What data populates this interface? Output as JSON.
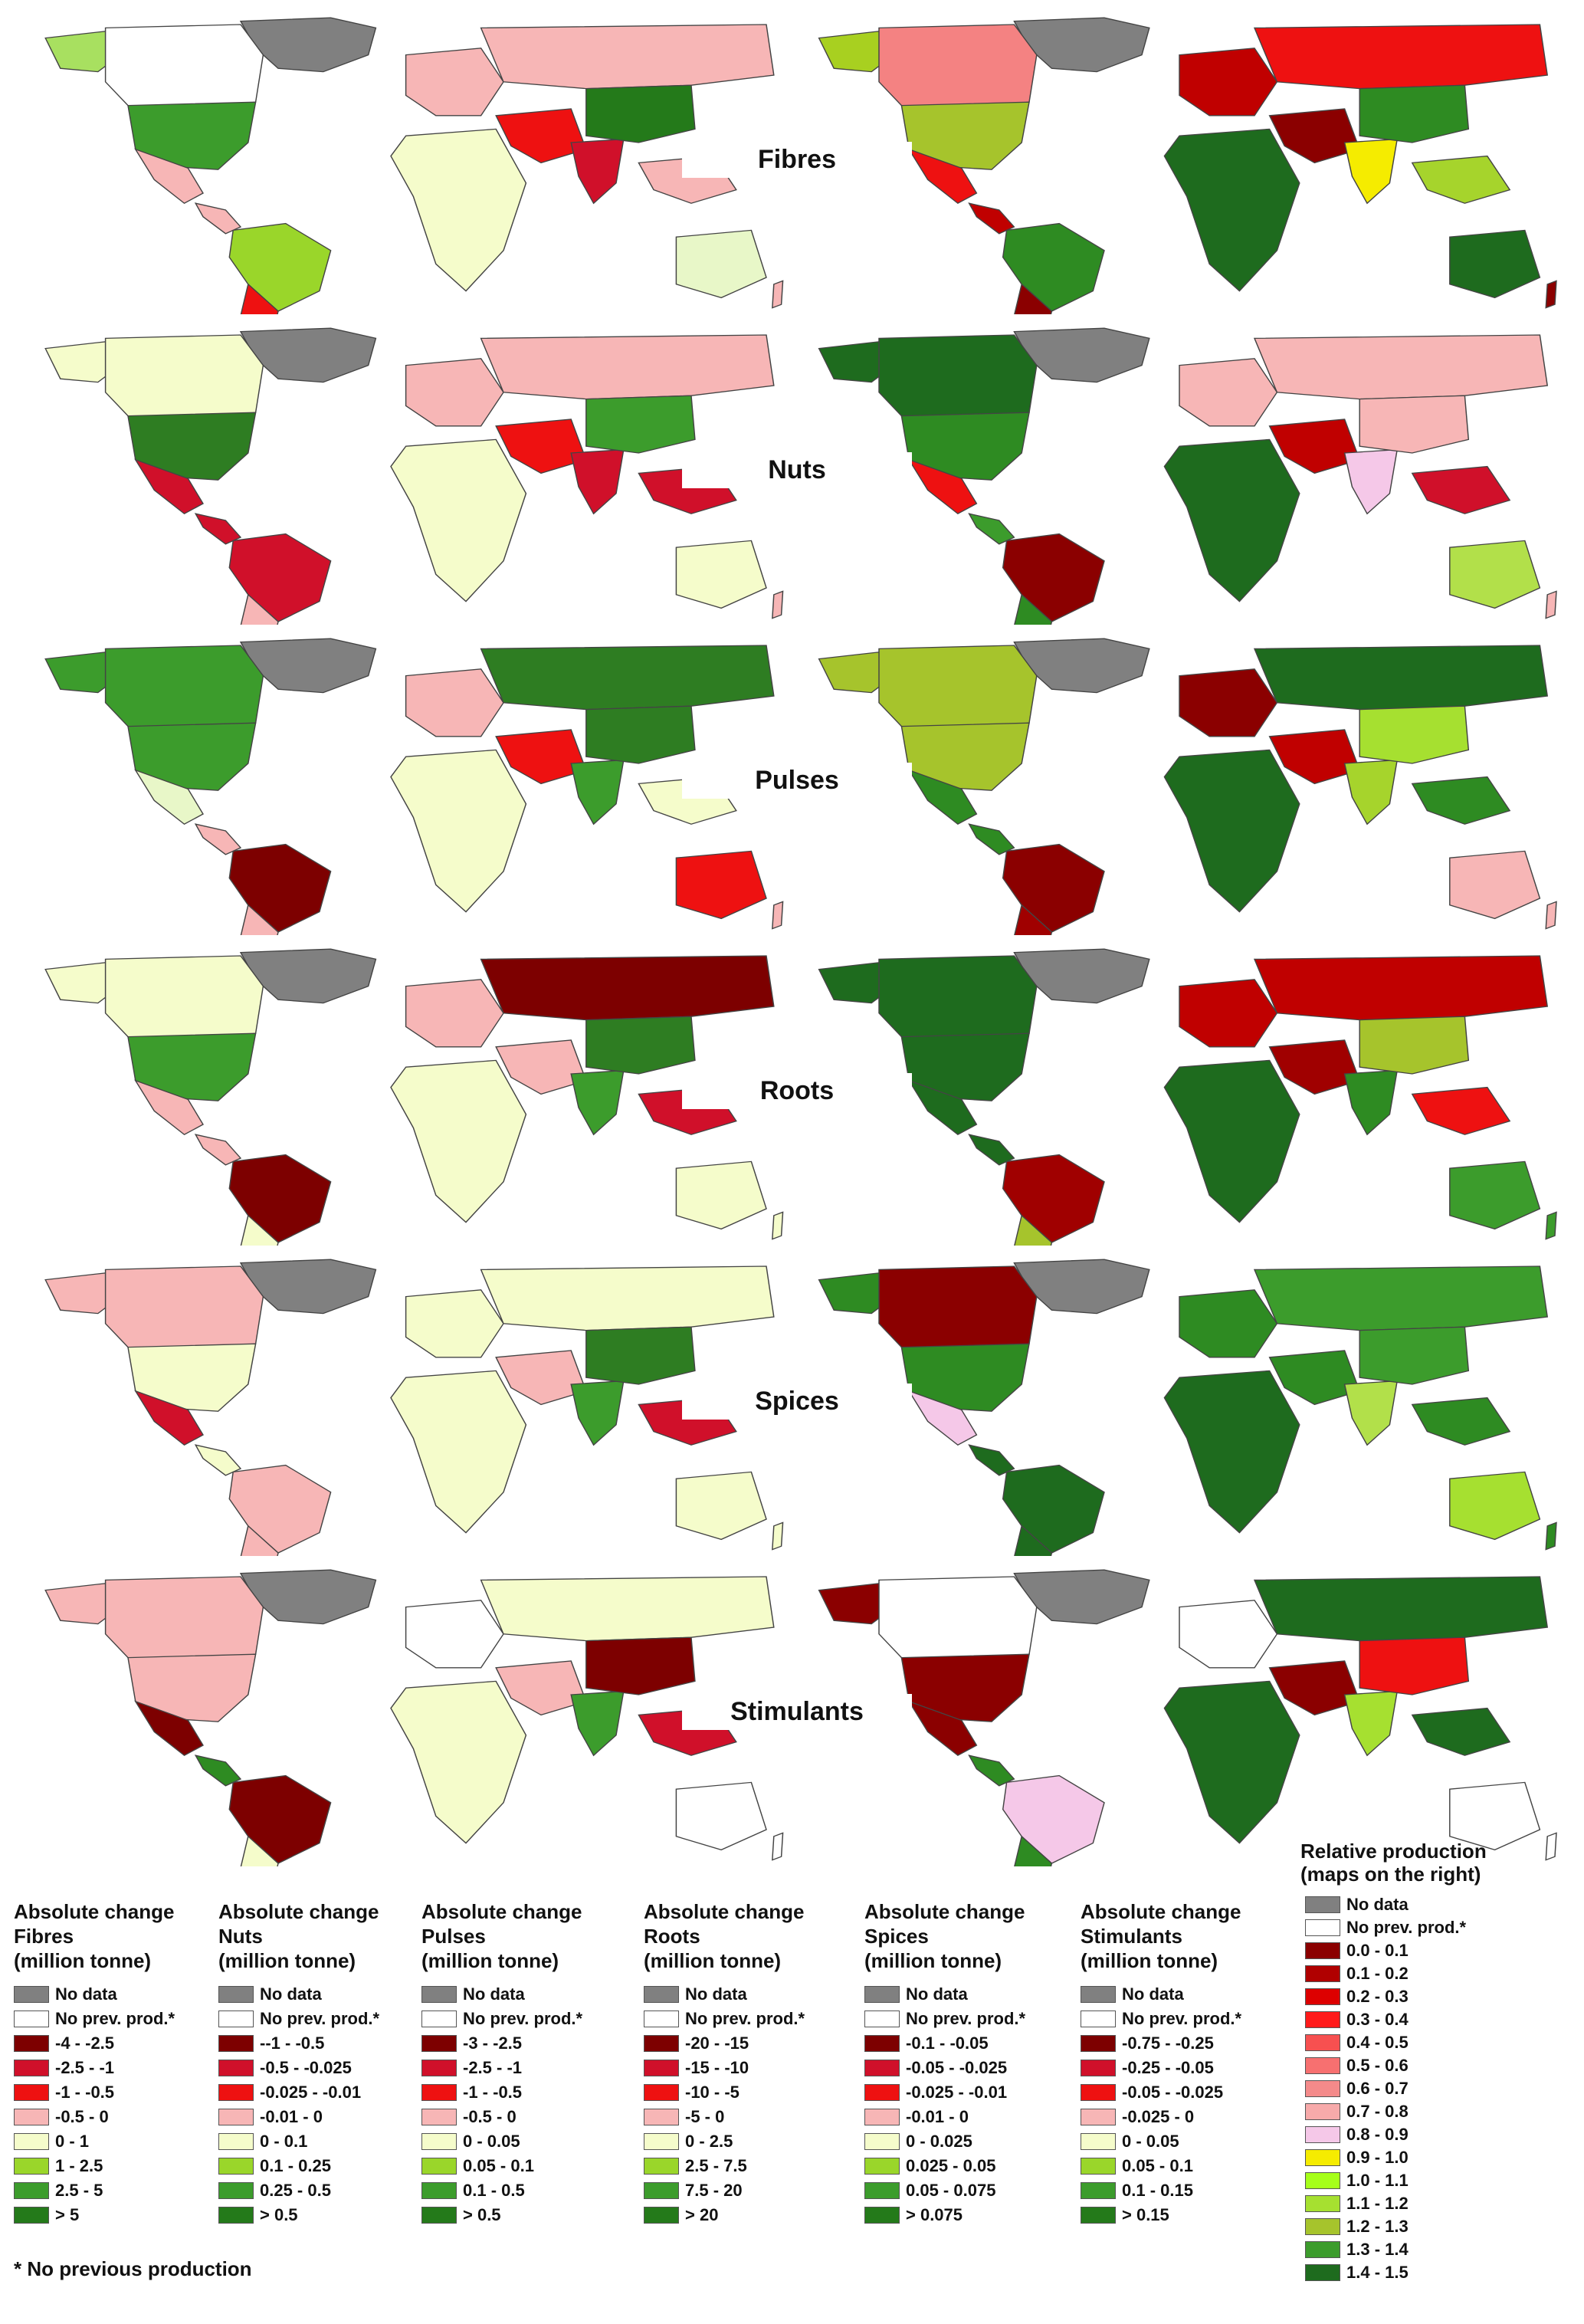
{
  "rows": [
    {
      "label": "Fibres",
      "abs": {
        "na": "#a8e060",
        "greenland": "#808080",
        "ca": "#ffffff",
        "us": "#3c9c2c",
        "mx": "#f7b6b6",
        "ca_am": "#f7b6b6",
        "sa_n": "#9ad62a",
        "sa_s": "#ee1111",
        "eu": "#f7b6b6",
        "ru": "#f7b6b6",
        "af": "#f5fccb",
        "me": "#ee1111",
        "in": "#d0102a",
        "cn": "#247a1a",
        "sea": "#f7b6b6",
        "au": "#e8f7c8",
        "nz": "#f7b6b6"
      },
      "rel": {
        "na": "#a8d020",
        "greenland": "#808080",
        "ca": "#f48282",
        "us": "#a6c42c",
        "mx": "#ee1111",
        "ca_am": "#c00000",
        "sa_n": "#2e8b22",
        "sa_s": "#8b0000",
        "eu": "#c00000",
        "ru": "#ee1111",
        "af": "#1e6b1e",
        "me": "#8b0000",
        "in": "#f5ec00",
        "cn": "#2e8b22",
        "sea": "#a6d42c",
        "au": "#1e6b1e",
        "nz": "#8b0000"
      }
    },
    {
      "label": "Nuts",
      "abs": {
        "na": "#f5fccb",
        "greenland": "#808080",
        "ca": "#f5fccb",
        "us": "#2e7d22",
        "mx": "#d0102a",
        "ca_am": "#d0102a",
        "sa_n": "#d0102a",
        "sa_s": "#f7b6b6",
        "eu": "#f7b6b6",
        "ru": "#f7b6b6",
        "af": "#f5fccb",
        "me": "#ee1111",
        "in": "#d0102a",
        "cn": "#3c9c2c",
        "sea": "#d0102a",
        "au": "#f5fccb",
        "nz": "#f7b6b6"
      },
      "rel": {
        "na": "#1e6b1e",
        "greenland": "#808080",
        "ca": "#1e6b1e",
        "us": "#2e8b22",
        "mx": "#ee1111",
        "ca_am": "#3c9c2c",
        "sa_n": "#8b0000",
        "sa_s": "#2e8b22",
        "eu": "#f7b6b6",
        "ru": "#f7b6b6",
        "af": "#1e6b1e",
        "me": "#c00000",
        "in": "#f5c8e8",
        "cn": "#f7b6b6",
        "sea": "#d0102a",
        "au": "#b2e04a",
        "nz": "#f7b6b6"
      }
    },
    {
      "label": "Pulses",
      "abs": {
        "na": "#3c9c2c",
        "greenland": "#808080",
        "ca": "#3c9c2c",
        "us": "#3c9c2c",
        "mx": "#e8f7c8",
        "ca_am": "#f7b6b6",
        "sa_n": "#7d0000",
        "sa_s": "#f7b6b6",
        "eu": "#f7b6b6",
        "ru": "#2e7d22",
        "af": "#f5fccb",
        "me": "#ee1111",
        "in": "#3c9c2c",
        "cn": "#2e7d22",
        "sea": "#f5fccb",
        "au": "#ee1111",
        "nz": "#f7b6b6"
      },
      "rel": {
        "na": "#a6c42c",
        "greenland": "#808080",
        "ca": "#a6c42c",
        "us": "#a6c42c",
        "mx": "#2e8b22",
        "ca_am": "#2e8b22",
        "sa_n": "#8b0000",
        "sa_s": "#a00000",
        "eu": "#8b0000",
        "ru": "#1e6b1e",
        "af": "#1e6b1e",
        "me": "#c00000",
        "in": "#a6d42c",
        "cn": "#a6e030",
        "sea": "#2e8b22",
        "au": "#f7b6b6",
        "nz": "#f7b6b6"
      }
    },
    {
      "label": "Roots",
      "abs": {
        "na": "#f5fccb",
        "greenland": "#808080",
        "ca": "#f5fccb",
        "us": "#3c9c2c",
        "mx": "#f7b6b6",
        "ca_am": "#f7b6b6",
        "sa_n": "#7d0000",
        "sa_s": "#f5fccb",
        "eu": "#f7b6b6",
        "ru": "#7d0000",
        "af": "#f5fccb",
        "me": "#f7b6b6",
        "in": "#3c9c2c",
        "cn": "#2e7d22",
        "sea": "#d0102a",
        "au": "#f5fccb",
        "nz": "#f5fccb"
      },
      "rel": {
        "na": "#1e6b1e",
        "greenland": "#808080",
        "ca": "#1e6b1e",
        "us": "#1e6b1e",
        "mx": "#1e6b1e",
        "ca_am": "#1e6b1e",
        "sa_n": "#a00000",
        "sa_s": "#a6c42c",
        "eu": "#c00000",
        "ru": "#c00000",
        "af": "#1e6b1e",
        "me": "#a00000",
        "in": "#2e8b22",
        "cn": "#a6c42c",
        "sea": "#ee1111",
        "au": "#3c9c2c",
        "nz": "#3c9c2c"
      }
    },
    {
      "label": "Spices",
      "abs": {
        "na": "#f7b6b6",
        "greenland": "#808080",
        "ca": "#f7b6b6",
        "us": "#f5fccb",
        "mx": "#d0102a",
        "ca_am": "#f5fccb",
        "sa_n": "#f7b6b6",
        "sa_s": "#f7b6b6",
        "eu": "#f5fccb",
        "ru": "#f5fccb",
        "af": "#f5fccb",
        "me": "#f7b6b6",
        "in": "#3c9c2c",
        "cn": "#2e7d22",
        "sea": "#d0102a",
        "au": "#f5fccb",
        "nz": "#f5fccb"
      },
      "rel": {
        "na": "#2e8b22",
        "greenland": "#808080",
        "ca": "#8b0000",
        "us": "#2e8b22",
        "mx": "#f5c8e8",
        "ca_am": "#1e6b1e",
        "sa_n": "#1e6b1e",
        "sa_s": "#1e6b1e",
        "eu": "#2e8b22",
        "ru": "#3c9c2c",
        "af": "#1e6b1e",
        "me": "#2e8b22",
        "in": "#b2e04a",
        "cn": "#3c9c2c",
        "sea": "#2e8b22",
        "au": "#a6e030",
        "nz": "#2e8b22"
      }
    },
    {
      "label": "Stimulants",
      "abs": {
        "na": "#f7b6b6",
        "greenland": "#808080",
        "ca": "#f7b6b6",
        "us": "#f7b6b6",
        "mx": "#7d0000",
        "ca_am": "#2e8b22",
        "sa_n": "#7d0000",
        "sa_s": "#f5fccb",
        "eu": "#ffffff",
        "ru": "#f5fccb",
        "af": "#f5fccb",
        "me": "#f7b6b6",
        "in": "#3c9c2c",
        "cn": "#7d0000",
        "sea": "#d0102a",
        "au": "#ffffff",
        "nz": "#ffffff"
      },
      "rel": {
        "na": "#8b0000",
        "greenland": "#808080",
        "ca": "#ffffff",
        "us": "#8b0000",
        "mx": "#8b0000",
        "ca_am": "#2e8b22",
        "sa_n": "#f5c8e8",
        "sa_s": "#2e8b22",
        "eu": "#ffffff",
        "ru": "#1e6b1e",
        "af": "#1e6b1e",
        "me": "#8b0000",
        "in": "#a6e030",
        "cn": "#ee1111",
        "sea": "#1e6b1e",
        "au": "#ffffff",
        "nz": "#ffffff"
      }
    }
  ],
  "legend_swatch_colors": [
    "#808080",
    "#ffffff",
    "#7d0000",
    "#d0102a",
    "#ee1111",
    "#f7b6b6",
    "#f5fccb",
    "#9ad62a",
    "#3c9c2c",
    "#247a1a"
  ],
  "legends": [
    {
      "title1": "Absolute change",
      "title2": "Fibres",
      "title3": "(million tonne)",
      "items": [
        "No data",
        "No prev. prod.*",
        "-4 - -2.5",
        "-2.5 - -1",
        "-1 - -0.5",
        "-0.5 - 0",
        "0 - 1",
        "1 - 2.5",
        "2.5 - 5",
        "> 5"
      ]
    },
    {
      "title1": "Absolute change",
      "title2": "Nuts",
      "title3": "(million tonne)",
      "items": [
        "No data",
        "No prev. prod.*",
        "--1 - -0.5",
        "-0.5 - -0.025",
        "-0.025 - -0.01",
        "-0.01 - 0",
        "0 - 0.1",
        "0.1 - 0.25",
        "0.25 - 0.5",
        "> 0.5"
      ]
    },
    {
      "title1": "Absolute change",
      "title2": "Pulses",
      "title3": "(million tonne)",
      "items": [
        "No data",
        "No prev. prod.*",
        "-3 - -2.5",
        "-2.5 - -1",
        "-1 - -0.5",
        "-0.5 - 0",
        "0 - 0.05",
        "0.05 - 0.1",
        "0.1 - 0.5",
        "> 0.5"
      ]
    },
    {
      "title1": "Absolute change",
      "title2": "Roots",
      "title3": "(million tonne)",
      "items": [
        "No data",
        "No prev. prod.*",
        "-20 - -15",
        "-15 - -10",
        "-10 - -5",
        "-5 - 0",
        "0 - 2.5",
        "2.5 - 7.5",
        "7.5 - 20",
        "> 20"
      ]
    },
    {
      "title1": "Absolute change",
      "title2": "Spices",
      "title3": "(million tonne)",
      "items": [
        "No data",
        "No prev. prod.*",
        "-0.1 - -0.05",
        "-0.05 - -0.025",
        "-0.025 - -0.01",
        "-0.01 - 0",
        "0 - 0.025",
        "0.025 - 0.05",
        "0.05 - 0.075",
        "> 0.075"
      ]
    },
    {
      "title1": "Absolute change",
      "title2": "Stimulants",
      "title3": "(million tonne)",
      "items": [
        "No data",
        "No prev. prod.*",
        "-0.75 - -0.25",
        "-0.25 - -0.05",
        "-0.05 - -0.025",
        "-0.025 - 0",
        "0 - 0.05",
        "0.05 - 0.1",
        "0.1 - 0.15",
        "> 0.15"
      ]
    }
  ],
  "relative_legend": {
    "title1": "Relative production",
    "title2": "(maps on the right)",
    "items": [
      {
        "label": "No data",
        "color": "#808080"
      },
      {
        "label": "No prev. prod.*",
        "color": "#ffffff"
      },
      {
        "label": "0.0 - 0.1",
        "color": "#8b0000"
      },
      {
        "label": "0.1 - 0.2",
        "color": "#b00000"
      },
      {
        "label": "0.2 - 0.3",
        "color": "#dd0000"
      },
      {
        "label": "0.3 - 0.4",
        "color": "#ff1a1a"
      },
      {
        "label": "0.4 - 0.5",
        "color": "#f75050"
      },
      {
        "label": "0.5 - 0.6",
        "color": "#f77070"
      },
      {
        "label": "0.6 - 0.7",
        "color": "#f48a8a"
      },
      {
        "label": "0.7 - 0.8",
        "color": "#f7aaaa"
      },
      {
        "label": "0.8 - 0.9",
        "color": "#f5c8e8"
      },
      {
        "label": "0.9 - 1.0",
        "color": "#f5ec00"
      },
      {
        "label": "1.0 - 1.1",
        "color": "#a6ff1a"
      },
      {
        "label": "1.1 - 1.2",
        "color": "#a6e030"
      },
      {
        "label": "1.2 - 1.3",
        "color": "#a6c42c"
      },
      {
        "label": "1.3 - 1.4",
        "color": "#3c9c2c"
      },
      {
        "label": "1.4 - 1.5",
        "color": "#1e6b1e"
      }
    ]
  },
  "footnote": "* No previous production"
}
